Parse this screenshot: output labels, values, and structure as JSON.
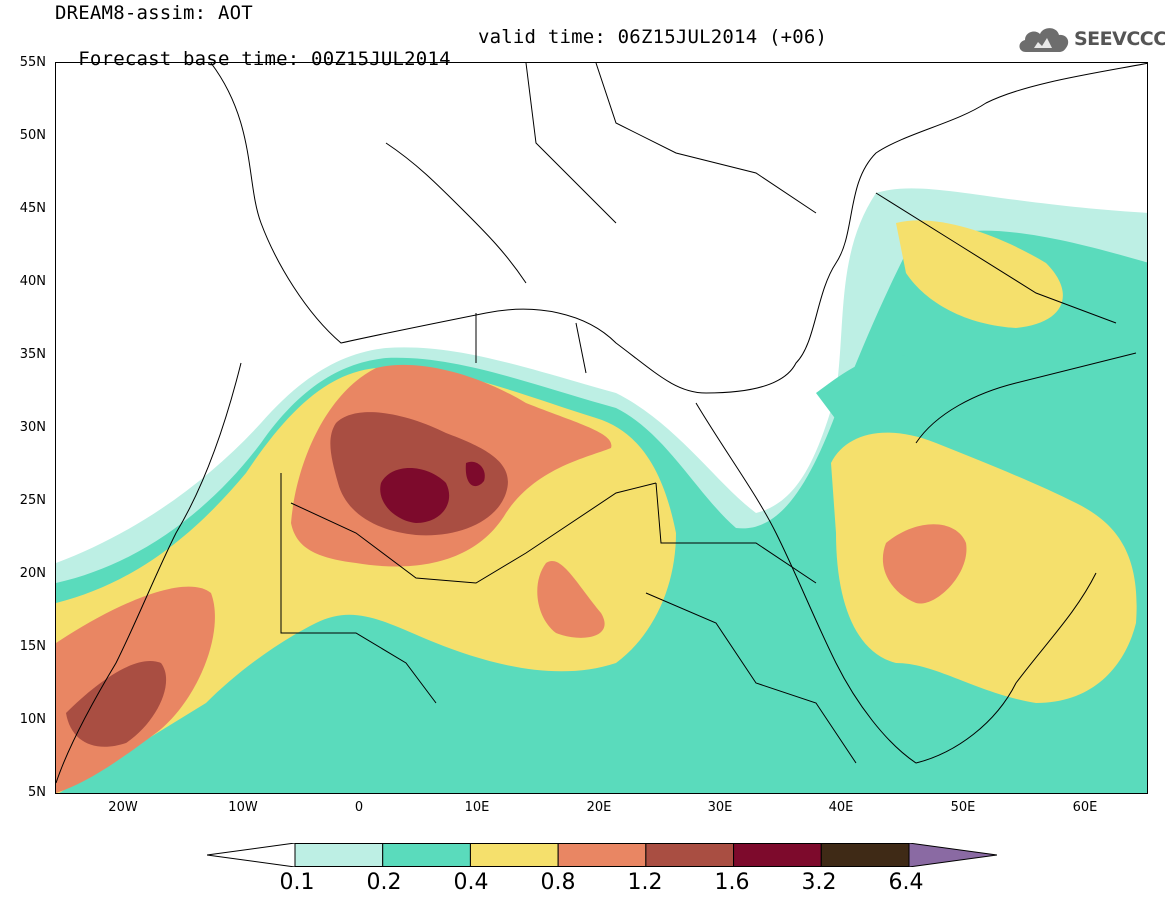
{
  "header": {
    "model_line": "DREAM8-assim: AOT",
    "forecast_line": "Forecast base time: 00Z15JUL2014",
    "valid_line": "valid time: 06Z15JUL2014 (+06)"
  },
  "logo": {
    "text": "SEEVCCC",
    "icon": "cloud-logo-icon"
  },
  "map": {
    "lat_labels": [
      "55N",
      "50N",
      "45N",
      "40N",
      "35N",
      "30N",
      "25N",
      "20N",
      "15N",
      "10N",
      "5N"
    ],
    "lon_labels": [
      "20W",
      "10W",
      "0",
      "10E",
      "20E",
      "30E",
      "40E",
      "50E",
      "60E"
    ],
    "extent": {
      "lon": [
        -25,
        65
      ],
      "lat": [
        5,
        55
      ]
    }
  },
  "legend": {
    "labels": [
      "0.1",
      "0.2",
      "0.4",
      "0.8",
      "1.2",
      "1.6",
      "3.2",
      "6.4"
    ],
    "colors": [
      "#ffffff",
      "#bdefe4",
      "#5adbbc",
      "#f5e06c",
      "#e98663",
      "#a94e42",
      "#7d0a2c",
      "#3f2a16",
      "#8a6aa3"
    ]
  }
}
